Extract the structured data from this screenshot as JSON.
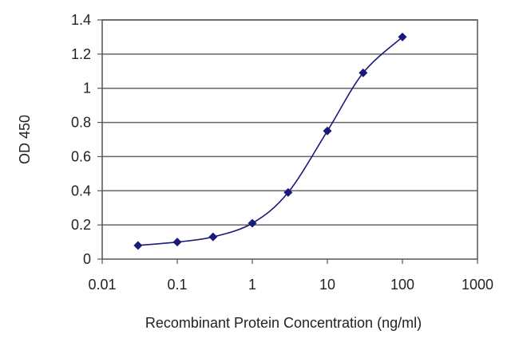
{
  "chart_data": {
    "type": "line",
    "title": "",
    "xlabel": "Recombinant Protein Concentration (ng/ml)",
    "ylabel": "OD 450",
    "x_scale": "log",
    "xlim": [
      0.01,
      1000
    ],
    "ylim": [
      0,
      1.4
    ],
    "x_ticks": [
      "0.01",
      "0.1",
      "1",
      "10",
      "100",
      "1000"
    ],
    "y_ticks": [
      "0",
      "0.2",
      "0.4",
      "0.6",
      "0.8",
      "1",
      "1.2",
      "1.4"
    ],
    "grid": "horizontal",
    "legend": "none",
    "series": [
      {
        "x": [
          0.03,
          0.1,
          0.3,
          1,
          3,
          10,
          30,
          100
        ],
        "y": [
          0.08,
          0.1,
          0.13,
          0.21,
          0.39,
          0.75,
          1.09,
          1.3
        ],
        "color": "#1a1a7a"
      }
    ]
  }
}
